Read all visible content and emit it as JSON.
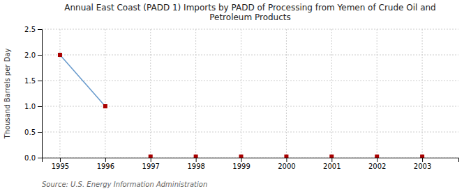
{
  "chart_data": {
    "type": "scatter",
    "title": "Annual East Coast (PADD 1) Imports by PADD of Processing from Yemen of Crude Oil and\nPetroleum Products",
    "ylabel": "Thousand Barrels per Day",
    "source": "Source: U.S. Energy Information Administration",
    "x": [
      1995,
      1996,
      1997,
      1998,
      1999,
      2000,
      2001,
      2002,
      2003
    ],
    "series": [
      {
        "type": "line",
        "color": "#6699cc",
        "line_style": "solid",
        "values": [
          2.0,
          1.0,
          null,
          null,
          null,
          null,
          null,
          null,
          null
        ]
      },
      {
        "type": "scatter",
        "color": "#aa0000",
        "marker": "square",
        "values": [
          2.0,
          1.0,
          0.02,
          0.02,
          0.02,
          0.02,
          0.02,
          0.02,
          0.02
        ]
      }
    ],
    "xlim": [
      1994.6,
      2003.8
    ],
    "xticks": [
      1995,
      1996,
      1997,
      1998,
      1999,
      2000,
      2001,
      2002,
      2003
    ],
    "ylim": [
      0.0,
      2.5
    ],
    "yticks": [
      {
        "value": 0.0,
        "label": "0.0"
      },
      0.5,
      {
        "value": 1.0,
        "label": "1.0"
      },
      1.5,
      {
        "value": 2.0,
        "label": "2.0"
      },
      2.5
    ],
    "grid": true
  }
}
